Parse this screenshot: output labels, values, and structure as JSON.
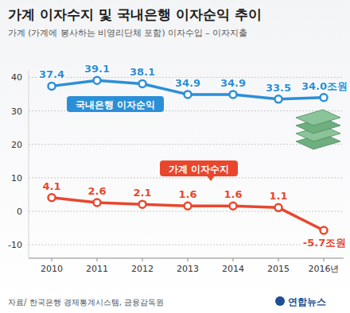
{
  "chart_data": {
    "type": "line",
    "title": "가계 이자수지 및 국내은행 이자순익 추이",
    "subtitle": "가계 (가계에 봉사하는 비영리단체 포함) 이자수입 – 이자지출",
    "categories": [
      "2010",
      "2011",
      "2012",
      "2013",
      "2014",
      "2015",
      "2016년"
    ],
    "series": [
      {
        "name": "국내은행 이자순익",
        "color": "#2b8fd8",
        "marker": "circle",
        "values": [
          37.4,
          39.1,
          38.1,
          34.9,
          34.9,
          33.5,
          34.0
        ],
        "value_labels": [
          "37.4",
          "39.1",
          "38.1",
          "34.9",
          "34.9",
          "33.5",
          "34.0조원"
        ]
      },
      {
        "name": "가계 이자수지",
        "color": "#e8472e",
        "marker": "circle",
        "values": [
          4.1,
          2.6,
          2.1,
          1.6,
          1.6,
          1.1,
          -5.7
        ],
        "value_labels": [
          "4.1",
          "2.6",
          "2.1",
          "1.6",
          "1.6",
          "1.1",
          "-5.7조원"
        ]
      }
    ],
    "ylim": [
      -14,
      42
    ],
    "yticks": [
      -10,
      0,
      10,
      20,
      30,
      40
    ],
    "grid": true,
    "data_labels": true,
    "source": "자료/ 한국은행 경제통계시스템, 금융감독원",
    "credit": "연합뉴스"
  }
}
